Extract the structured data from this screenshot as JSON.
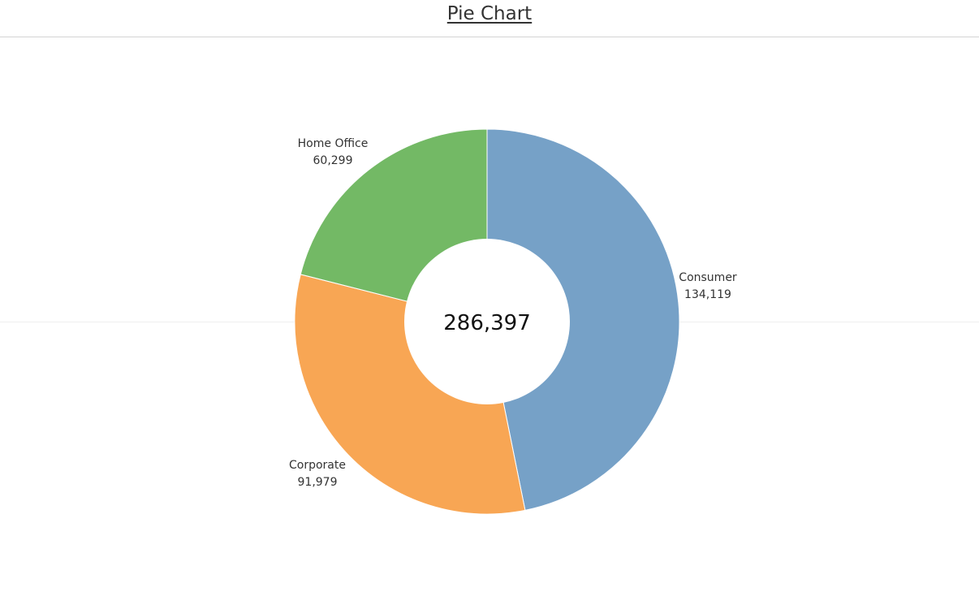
{
  "title": "Pie Chart",
  "chart_data": {
    "type": "pie",
    "title": "Pie Chart",
    "donut": true,
    "center_total": "286,397",
    "slices": [
      {
        "label": "Consumer",
        "value": 134119,
        "value_text": "134,119",
        "color": "#76A1C7"
      },
      {
        "label": "Corporate",
        "value": 91979,
        "value_text": "91,979",
        "color": "#F8A654"
      },
      {
        "label": "Home Office",
        "value": 60299,
        "value_text": "60,299",
        "color": "#73B965"
      }
    ],
    "start_angle_deg": 0,
    "direction": "clockwise"
  }
}
